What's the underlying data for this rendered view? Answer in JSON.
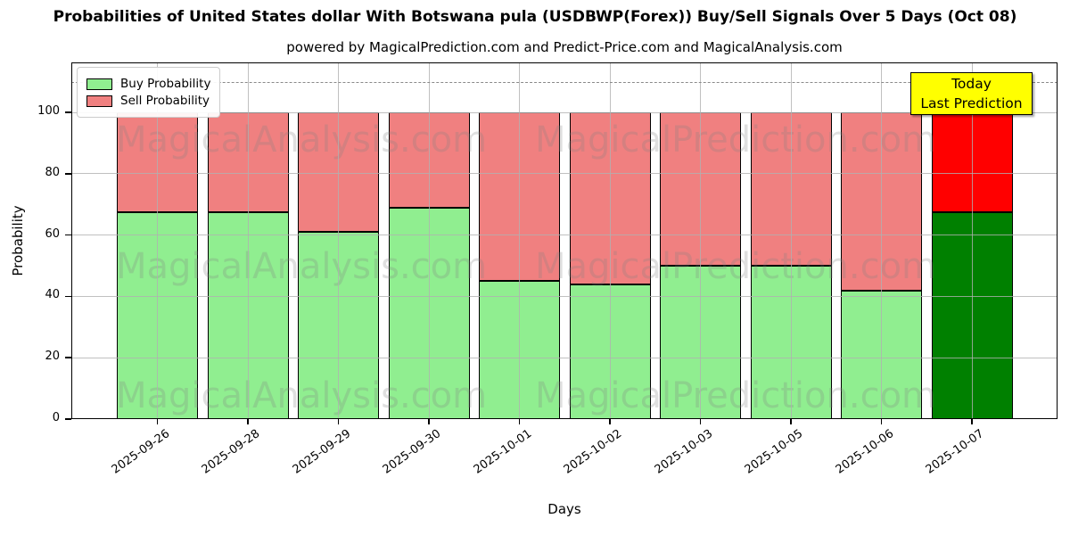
{
  "title": "Probabilities of United States dollar With Botswana pula (USDBWP(Forex)) Buy/Sell Signals Over 5 Days (Oct 08)",
  "subtitle": "powered by MagicalPrediction.com and Predict-Price.com and MagicalAnalysis.com",
  "axes": {
    "xlabel": "Days",
    "ylabel": "Probability"
  },
  "legend": {
    "items": [
      {
        "label": "Buy Probability",
        "color": "#90EE90"
      },
      {
        "label": "Sell Probability",
        "color": "#F08080"
      }
    ]
  },
  "annotation": {
    "lines": [
      "Today",
      "Last Prediction"
    ],
    "bg_color": "#FFFF00"
  },
  "watermarks": {
    "left_text": "MagicalAnalysis.com",
    "right_text": "MagicalPrediction.com"
  },
  "chart_data": {
    "type": "bar",
    "stacked": true,
    "title": "Probabilities of United States dollar With Botswana pula (USDBWP(Forex)) Buy/Sell Signals Over 5 Days (Oct 08)",
    "xlabel": "Days",
    "ylabel": "Probability",
    "categories": [
      "2025-09-26",
      "2025-09-28",
      "2025-09-29",
      "2025-09-30",
      "2025-10-01",
      "2025-10-02",
      "2025-10-03",
      "2025-10-05",
      "2025-10-06",
      "2025-10-07"
    ],
    "series": [
      {
        "name": "Buy Probability",
        "color": "#90EE90",
        "today_color": "#008000",
        "values": [
          67.5,
          67.5,
          61,
          69,
          45,
          44,
          50,
          50,
          42,
          67.5
        ]
      },
      {
        "name": "Sell Probability",
        "color": "#F08080",
        "today_color": "#FF0000",
        "values": [
          32.5,
          32.5,
          39,
          31,
          55,
          56,
          50,
          50,
          58,
          32.5
        ]
      }
    ],
    "today_index": 9,
    "yticks": [
      0,
      20,
      40,
      60,
      80,
      100
    ],
    "ylim": [
      0,
      116.3
    ],
    "dashed_line_y": 110,
    "grid": true,
    "grid_color": "#b0b0b0",
    "bar_edge_color": "#000000",
    "legend_position": "upper left"
  }
}
